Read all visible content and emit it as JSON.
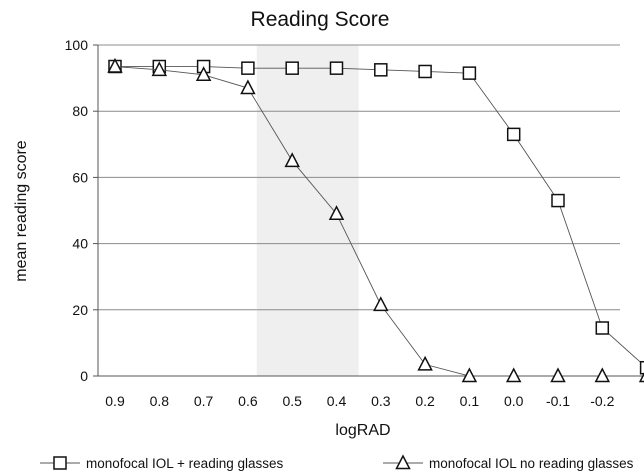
{
  "chart_data": {
    "type": "line",
    "title": "Reading Score",
    "xlabel": "logRAD",
    "ylabel": "mean reading score",
    "ylim": [
      0,
      100
    ],
    "yticks": [
      0,
      20,
      40,
      60,
      80,
      100
    ],
    "x": [
      0.9,
      0.8,
      0.7,
      0.6,
      0.5,
      0.4,
      0.3,
      0.2,
      0.1,
      0.0,
      -0.1,
      -0.2,
      -0.3
    ],
    "x_tick_labels": [
      "0.9",
      "0.8",
      "0.7",
      "0.6",
      "0.5",
      "0.4",
      "0.3",
      "0.2",
      "0.1",
      "0.0",
      "-0.1",
      "-0.2"
    ],
    "shaded_region": [
      0.58,
      0.35
    ],
    "grid": true,
    "legend_position": "bottom",
    "series": [
      {
        "name": "monofocal IOL + reading glasses",
        "marker": "square",
        "x": [
          0.9,
          0.8,
          0.7,
          0.6,
          0.5,
          0.4,
          0.3,
          0.2,
          0.1,
          0.0,
          -0.1,
          -0.2,
          -0.3
        ],
        "values": [
          93.5,
          93.5,
          93.5,
          93,
          93,
          93,
          92.5,
          92,
          91.5,
          73,
          53,
          14.5,
          2.5
        ]
      },
      {
        "name": "monofocal IOL no reading glasses",
        "marker": "triangle",
        "x": [
          0.9,
          0.8,
          0.7,
          0.6,
          0.5,
          0.4,
          0.3,
          0.2,
          0.1,
          0.0,
          -0.1,
          -0.2,
          -0.3
        ],
        "values": [
          93.5,
          92.5,
          91,
          87,
          65,
          49,
          21.5,
          3.5,
          0,
          0,
          0,
          0,
          0
        ]
      }
    ],
    "colors": {
      "marker_stroke": "#111111",
      "marker_fill": "#ffffff",
      "line": "#555555",
      "shade": "#efefef",
      "grid": "#8c8c8c"
    }
  }
}
